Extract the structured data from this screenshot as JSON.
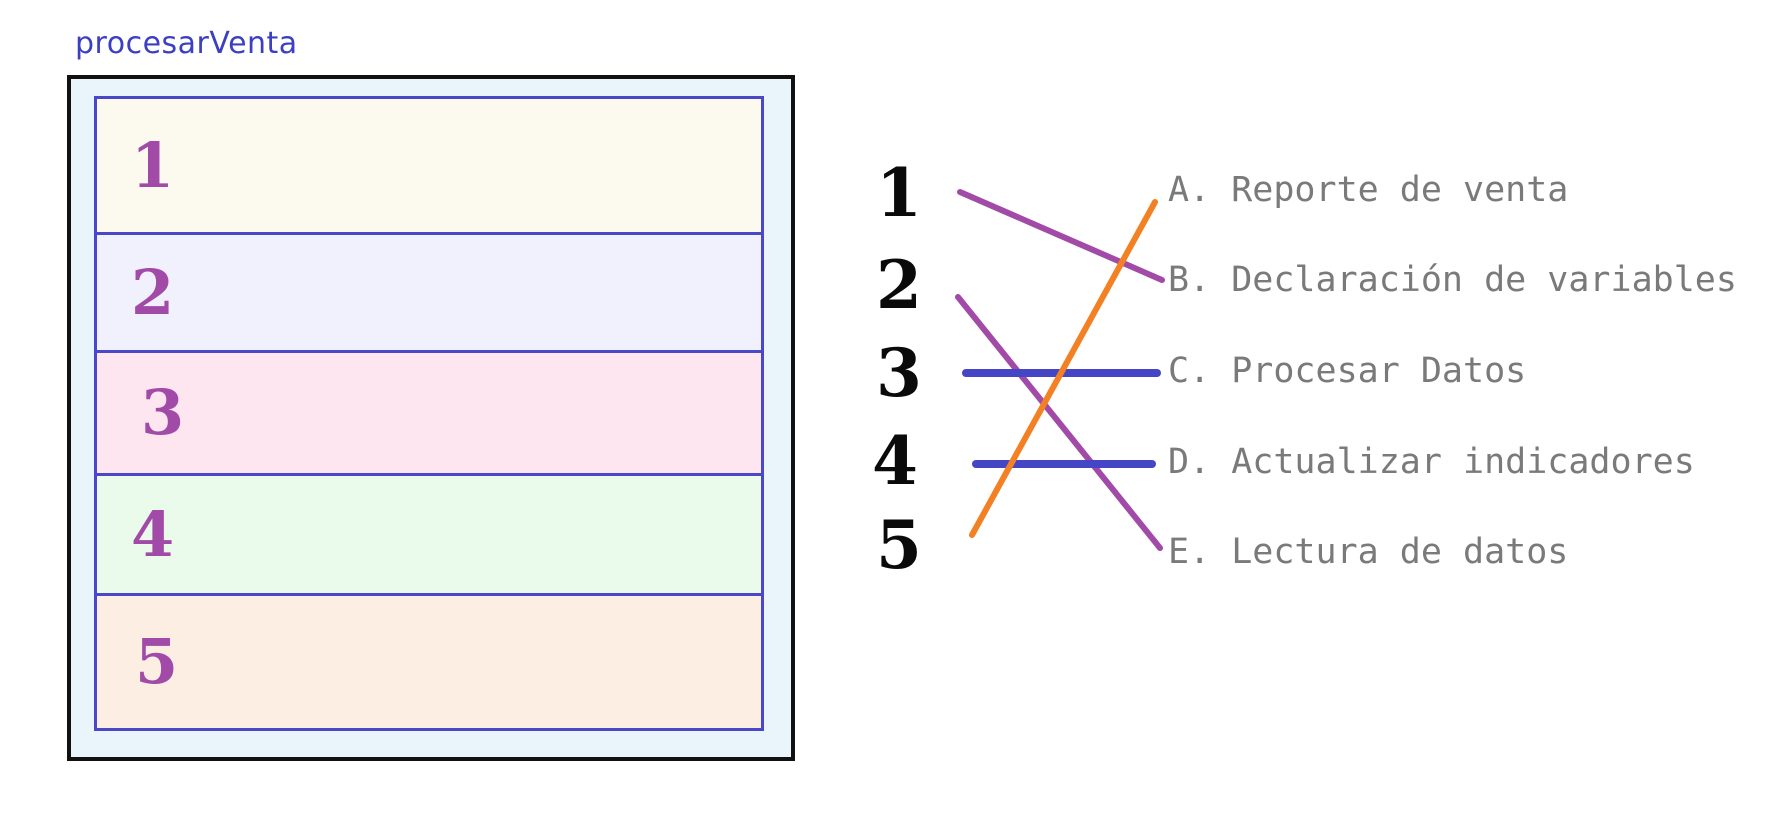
{
  "procedure": {
    "title": "procesarVenta",
    "sections": [
      {
        "label": "1",
        "color": "#fcf9ee"
      },
      {
        "label": "2",
        "color": "#f1f1fd"
      },
      {
        "label": "3",
        "color": "#fde6ef"
      },
      {
        "label": "4",
        "color": "#ebfbeb"
      },
      {
        "label": "5",
        "color": "#fdeee4"
      }
    ]
  },
  "matching": {
    "left_items": [
      "1",
      "2",
      "3",
      "4",
      "5"
    ],
    "options": [
      {
        "letter": "A",
        "text": "A. Reporte de venta"
      },
      {
        "letter": "B",
        "text": "B. Declaración de variables"
      },
      {
        "letter": "C",
        "text": "C. Procesar Datos"
      },
      {
        "letter": "D",
        "text": "D. Actualizar indicadores"
      },
      {
        "letter": "E",
        "text": "E. Lectura de datos"
      }
    ],
    "links": [
      {
        "from": "1",
        "to": "B",
        "color": "#a24aa8"
      },
      {
        "from": "2",
        "to": "E",
        "color": "#a24aa8"
      },
      {
        "from": "3",
        "to": "C",
        "color": "#4446c6"
      },
      {
        "from": "4",
        "to": "D",
        "color": "#4446c6"
      },
      {
        "from": "5",
        "to": "A",
        "color": "#f48024"
      }
    ]
  }
}
